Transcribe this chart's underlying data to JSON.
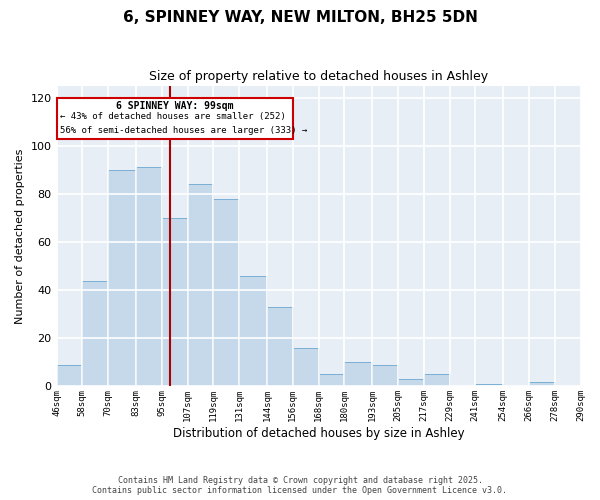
{
  "title": "6, SPINNEY WAY, NEW MILTON, BH25 5DN",
  "subtitle": "Size of property relative to detached houses in Ashley",
  "xlabel": "Distribution of detached houses by size in Ashley",
  "ylabel": "Number of detached properties",
  "bar_color": "#c5d9eb",
  "bar_edge_color": "#7aafd4",
  "background_color": "#e8eef5",
  "grid_color": "#ffffff",
  "annotation_box_color": "#cc0000",
  "property_line_color": "#aa0000",
  "property_value": 99,
  "annotation_title": "6 SPINNEY WAY: 99sqm",
  "annotation_line1": "← 43% of detached houses are smaller (252)",
  "annotation_line2": "56% of semi-detached houses are larger (333) →",
  "bins": [
    46,
    58,
    70,
    83,
    95,
    107,
    119,
    131,
    144,
    156,
    168,
    180,
    193,
    205,
    217,
    229,
    241,
    254,
    266,
    278,
    290
  ],
  "counts": [
    9,
    44,
    90,
    91,
    70,
    84,
    78,
    46,
    33,
    16,
    5,
    10,
    9,
    3,
    5,
    0,
    1,
    0,
    2,
    0
  ],
  "tick_labels": [
    "46sqm",
    "58sqm",
    "70sqm",
    "83sqm",
    "95sqm",
    "107sqm",
    "119sqm",
    "131sqm",
    "144sqm",
    "156sqm",
    "168sqm",
    "180sqm",
    "193sqm",
    "205sqm",
    "217sqm",
    "229sqm",
    "241sqm",
    "254sqm",
    "266sqm",
    "278sqm",
    "290sqm"
  ],
  "ylim": [
    0,
    125
  ],
  "yticks": [
    0,
    20,
    40,
    60,
    80,
    100,
    120
  ],
  "footnote1": "Contains HM Land Registry data © Crown copyright and database right 2025.",
  "footnote2": "Contains public sector information licensed under the Open Government Licence v3.0."
}
